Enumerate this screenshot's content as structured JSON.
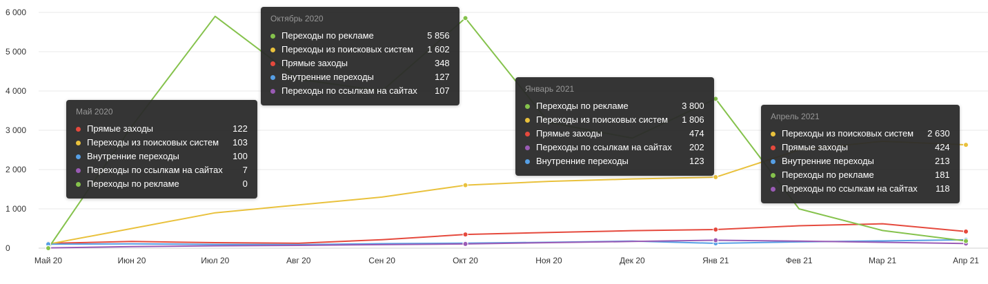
{
  "chart_data": {
    "type": "line",
    "title": "",
    "xlabel": "",
    "ylabel": "",
    "x": [
      "Май 20",
      "Июн 20",
      "Июл 20",
      "Авг 20",
      "Сен 20",
      "Окт 20",
      "Ноя 20",
      "Дек 20",
      "Янв 21",
      "Фев 21",
      "Мар 21",
      "Апр 21"
    ],
    "ylim": [
      0,
      6000
    ],
    "yticks": [
      "0",
      "1 000",
      "2 000",
      "3 000",
      "4 000",
      "5 000",
      "6 000"
    ],
    "grid": "horizontal",
    "legend_position": "none",
    "highlight_indices": [
      0,
      5,
      8,
      11
    ],
    "series": [
      {
        "name": "Прямые заходы",
        "color": "#e5493d",
        "values": [
          122,
          170,
          140,
          125,
          215,
          348,
          400,
          445,
          474,
          570,
          620,
          424
        ]
      },
      {
        "name": "Переходы из поисковых систем",
        "color": "#e9c13c",
        "values": [
          103,
          500,
          900,
          1100,
          1300,
          1602,
          1700,
          1760,
          1806,
          2500,
          2720,
          2630
        ]
      },
      {
        "name": "Внутренние переходы",
        "color": "#569fe5",
        "values": [
          100,
          110,
          95,
          90,
          115,
          127,
          150,
          180,
          123,
          160,
          185,
          213
        ]
      },
      {
        "name": "Переходы по ссылкам на сайтах",
        "color": "#9a5bb5",
        "values": [
          7,
          40,
          60,
          70,
          90,
          107,
          140,
          170,
          202,
          180,
          150,
          118
        ]
      },
      {
        "name": "Переходы по рекламе",
        "color": "#85c24c",
        "values": [
          0,
          3100,
          5900,
          4300,
          4000,
          5856,
          3200,
          2800,
          3800,
          1000,
          450,
          181
        ]
      }
    ]
  },
  "tooltips": [
    {
      "title": "Май 2020",
      "rows": [
        {
          "label": "Прямые заходы",
          "value": "122",
          "color": "#e5493d"
        },
        {
          "label": "Переходы из поисковых систем",
          "value": "103",
          "color": "#e9c13c"
        },
        {
          "label": "Внутренние переходы",
          "value": "100",
          "color": "#569fe5"
        },
        {
          "label": "Переходы по ссылкам на сайтах",
          "value": "7",
          "color": "#9a5bb5"
        },
        {
          "label": "Переходы по рекламе",
          "value": "0",
          "color": "#85c24c"
        }
      ]
    },
    {
      "title": "Октябрь 2020",
      "rows": [
        {
          "label": "Переходы по рекламе",
          "value": "5 856",
          "color": "#85c24c"
        },
        {
          "label": "Переходы из поисковых систем",
          "value": "1 602",
          "color": "#e9c13c"
        },
        {
          "label": "Прямые заходы",
          "value": "348",
          "color": "#e5493d"
        },
        {
          "label": "Внутренние переходы",
          "value": "127",
          "color": "#569fe5"
        },
        {
          "label": "Переходы по ссылкам на сайтах",
          "value": "107",
          "color": "#9a5bb5"
        }
      ]
    },
    {
      "title": "Январь 2021",
      "rows": [
        {
          "label": "Переходы по рекламе",
          "value": "3 800",
          "color": "#85c24c"
        },
        {
          "label": "Переходы из поисковых систем",
          "value": "1 806",
          "color": "#e9c13c"
        },
        {
          "label": "Прямые заходы",
          "value": "474",
          "color": "#e5493d"
        },
        {
          "label": "Переходы по ссылкам на сайтах",
          "value": "202",
          "color": "#9a5bb5"
        },
        {
          "label": "Внутренние переходы",
          "value": "123",
          "color": "#569fe5"
        }
      ]
    },
    {
      "title": "Апрель 2021",
      "rows": [
        {
          "label": "Переходы из поисковых систем",
          "value": "2 630",
          "color": "#e9c13c"
        },
        {
          "label": "Прямые заходы",
          "value": "424",
          "color": "#e5493d"
        },
        {
          "label": "Внутренние переходы",
          "value": "213",
          "color": "#569fe5"
        },
        {
          "label": "Переходы по рекламе",
          "value": "181",
          "color": "#85c24c"
        },
        {
          "label": "Переходы по ссылкам на сайтах",
          "value": "118",
          "color": "#9a5bb5"
        }
      ]
    }
  ]
}
